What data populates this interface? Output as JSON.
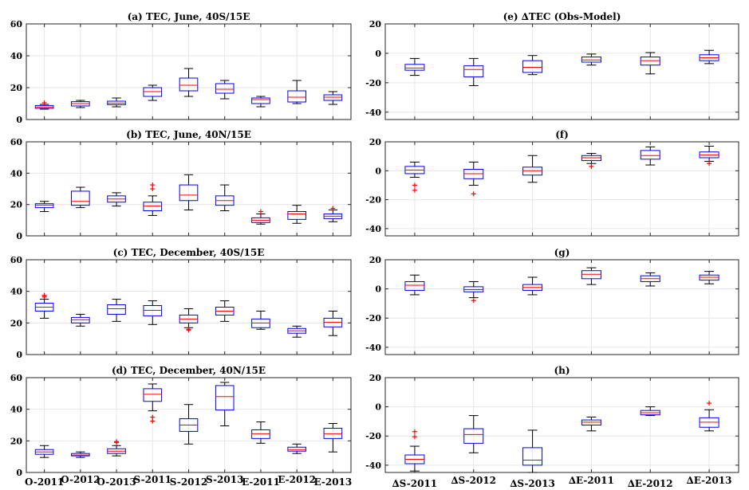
{
  "colors": {
    "box": "#0000ff",
    "median": "#ff0000",
    "whisker": "#000000",
    "outlier": "#ff0000"
  },
  "chart_data": [
    {
      "id": "a",
      "type": "box",
      "title": "(a) TEC, June, 40S/15E",
      "ylim": [
        0,
        60
      ],
      "yticks": [
        0,
        20,
        40,
        60
      ],
      "grid": true,
      "categories": [
        "O-2011",
        "O-2012",
        "O-2013",
        "S-2011",
        "S-2012",
        "S-2013",
        "E-2011",
        "E-2012",
        "E-2013"
      ],
      "boxes": [
        {
          "lw": 6.5,
          "q1": 7,
          "med": 7.8,
          "q3": 8.8,
          "uw": 9.5,
          "out": [
            10.5
          ]
        },
        {
          "lw": 7.5,
          "q1": 8.5,
          "med": 10,
          "q3": 11.2,
          "uw": 12,
          "out": []
        },
        {
          "lw": 8,
          "q1": 9.3,
          "med": 10.3,
          "q3": 11.5,
          "uw": 13.5,
          "out": []
        },
        {
          "lw": 12,
          "q1": 14.5,
          "med": 17.5,
          "q3": 20,
          "uw": 21.5,
          "out": []
        },
        {
          "lw": 14.5,
          "q1": 18,
          "med": 21.5,
          "q3": 26,
          "uw": 32,
          "out": []
        },
        {
          "lw": 13,
          "q1": 16.5,
          "med": 19,
          "q3": 22.5,
          "uw": 24.5,
          "out": []
        },
        {
          "lw": 8,
          "q1": 10,
          "med": 12.5,
          "q3": 13.5,
          "uw": 14.5,
          "out": []
        },
        {
          "lw": 10,
          "q1": 11,
          "med": 14,
          "q3": 18,
          "uw": 24.5,
          "out": []
        },
        {
          "lw": 9.5,
          "q1": 12,
          "med": 14,
          "q3": 15.5,
          "uw": 17.5,
          "out": []
        }
      ]
    },
    {
      "id": "b",
      "type": "box",
      "title": "(b) TEC, June, 40N/15E",
      "ylim": [
        0,
        60
      ],
      "yticks": [
        0,
        20,
        40,
        60
      ],
      "grid": true,
      "categories": [
        "O-2011",
        "O-2012",
        "O-2013",
        "S-2011",
        "S-2012",
        "S-2013",
        "E-2011",
        "E-2012",
        "E-2013"
      ],
      "boxes": [
        {
          "lw": 15.5,
          "q1": 18,
          "med": 19.5,
          "q3": 20.5,
          "uw": 22,
          "out": []
        },
        {
          "lw": 18,
          "q1": 19.5,
          "med": 22,
          "q3": 28.5,
          "uw": 31,
          "out": []
        },
        {
          "lw": 19,
          "q1": 21.5,
          "med": 23.5,
          "q3": 25.5,
          "uw": 27.5,
          "out": []
        },
        {
          "lw": 13,
          "q1": 16,
          "med": 19,
          "q3": 21.5,
          "uw": 25.5,
          "out": [
            30,
            32.5
          ]
        },
        {
          "lw": 16.5,
          "q1": 22.5,
          "med": 26,
          "q3": 32.5,
          "uw": 39,
          "out": []
        },
        {
          "lw": 16,
          "q1": 19.5,
          "med": 22.5,
          "q3": 25.5,
          "uw": 32.5,
          "out": []
        },
        {
          "lw": 7.5,
          "q1": 8.5,
          "med": 10,
          "q3": 11.5,
          "uw": 14,
          "out": [
            15.5
          ]
        },
        {
          "lw": 8,
          "q1": 10.5,
          "med": 14,
          "q3": 15.5,
          "uw": 19.5,
          "out": []
        },
        {
          "lw": 9,
          "q1": 11,
          "med": 12.5,
          "q3": 14,
          "uw": 16.5,
          "out": [
            17.5
          ]
        }
      ]
    },
    {
      "id": "c",
      "type": "box",
      "title": "(c) TEC, December, 40S/15E",
      "ylim": [
        0,
        60
      ],
      "yticks": [
        0,
        20,
        40,
        60
      ],
      "grid": true,
      "categories": [
        "O-2011",
        "O-2012",
        "O-2013",
        "S-2011",
        "S-2012",
        "S-2013",
        "E-2011",
        "E-2012",
        "E-2013"
      ],
      "boxes": [
        {
          "lw": 23,
          "q1": 27.5,
          "med": 30,
          "q3": 32.5,
          "uw": 35,
          "out": [
            36.5,
            37.5
          ]
        },
        {
          "lw": 18,
          "q1": 20,
          "med": 22,
          "q3": 23.5,
          "uw": 25.5,
          "out": []
        },
        {
          "lw": 21,
          "q1": 25.5,
          "med": 29,
          "q3": 31.5,
          "uw": 35,
          "out": []
        },
        {
          "lw": 19,
          "q1": 24.5,
          "med": 28,
          "q3": 31,
          "uw": 34,
          "out": []
        },
        {
          "lw": 17,
          "q1": 20,
          "med": 22.5,
          "q3": 25,
          "uw": 29,
          "out": [
            16,
            15.5
          ]
        },
        {
          "lw": 21,
          "q1": 25,
          "med": 27.5,
          "q3": 30,
          "uw": 34,
          "out": []
        },
        {
          "lw": 16,
          "q1": 17,
          "med": 20,
          "q3": 22.5,
          "uw": 27.5,
          "out": []
        },
        {
          "lw": 11,
          "q1": 13.5,
          "med": 15,
          "q3": 16.5,
          "uw": 18,
          "out": []
        },
        {
          "lw": 12,
          "q1": 17.5,
          "med": 20.5,
          "q3": 23,
          "uw": 27.5,
          "out": []
        }
      ]
    },
    {
      "id": "d",
      "type": "box",
      "title": "(d) TEC, December, 40N/15E",
      "ylim": [
        0,
        60
      ],
      "yticks": [
        0,
        20,
        40,
        60
      ],
      "grid": true,
      "categories": [
        "O-2011",
        "O-2012",
        "O-2013",
        "S-2011",
        "S-2012",
        "S-2013",
        "E-2011",
        "E-2012",
        "E-2013"
      ],
      "xticklabels": [
        "O-2011",
        "O-2012",
        "O-2013",
        "S-2011",
        "S-2012",
        "S-2013",
        "E-2011",
        "E-2012",
        "E-2013"
      ],
      "boxes": [
        {
          "lw": 9.5,
          "q1": 11.5,
          "med": 13,
          "q3": 14.5,
          "uw": 17,
          "out": []
        },
        {
          "lw": 9.5,
          "q1": 10.5,
          "med": 11,
          "q3": 12,
          "uw": 13,
          "out": []
        },
        {
          "lw": 10.5,
          "q1": 12,
          "med": 13.5,
          "q3": 15,
          "uw": 17,
          "out": [
            19,
            19.5
          ]
        },
        {
          "lw": 39,
          "q1": 45,
          "med": 49.5,
          "q3": 53,
          "uw": 56,
          "out": [
            35,
            32.5
          ]
        },
        {
          "lw": 18,
          "q1": 26,
          "med": 30,
          "q3": 34,
          "uw": 43,
          "out": []
        },
        {
          "lw": 29.5,
          "q1": 39.5,
          "med": 48,
          "q3": 55,
          "uw": 57,
          "out": []
        },
        {
          "lw": 18.5,
          "q1": 21.5,
          "med": 24.5,
          "q3": 27,
          "uw": 32,
          "out": []
        },
        {
          "lw": 12,
          "q1": 13.5,
          "med": 14.5,
          "q3": 16,
          "uw": 18,
          "out": []
        },
        {
          "lw": 13,
          "q1": 21.5,
          "med": 24.5,
          "q3": 28,
          "uw": 31,
          "out": []
        }
      ]
    },
    {
      "id": "e",
      "type": "box",
      "title": "(e)  ∆TEC (Obs-Model)",
      "ylim": [
        -45,
        20
      ],
      "yticks": [
        -40,
        -20,
        0,
        20
      ],
      "grid": true,
      "categories": [
        "∆S-2011",
        "∆S-2012",
        "∆S-2013",
        "∆E-2011",
        "∆E-2012",
        "∆E-2013"
      ],
      "boxes": [
        {
          "lw": -15,
          "q1": -11.5,
          "med": -10,
          "q3": -7.5,
          "uw": -3.5,
          "out": []
        },
        {
          "lw": -22,
          "q1": -16,
          "med": -11,
          "q3": -8.5,
          "uw": -3.5,
          "out": []
        },
        {
          "lw": -14.5,
          "q1": -13,
          "med": -9.5,
          "q3": -5,
          "uw": -1.5,
          "out": []
        },
        {
          "lw": -8,
          "q1": -6,
          "med": -4.5,
          "q3": -2.5,
          "uw": -0.5,
          "out": []
        },
        {
          "lw": -14,
          "q1": -8,
          "med": -5,
          "q3": -2.5,
          "uw": 0.5,
          "out": []
        },
        {
          "lw": -7,
          "q1": -5,
          "med": -3,
          "q3": -1,
          "uw": 2,
          "out": []
        }
      ]
    },
    {
      "id": "f",
      "type": "box",
      "title": "(f)",
      "ylim": [
        -45,
        20
      ],
      "yticks": [
        -40,
        -20,
        0,
        20
      ],
      "grid": true,
      "categories": [
        "∆S-2011",
        "∆S-2012",
        "∆S-2013",
        "∆E-2011",
        "∆E-2012",
        "∆E-2013"
      ],
      "boxes": [
        {
          "lw": -4.5,
          "q1": -2,
          "med": 0.5,
          "q3": 3,
          "uw": 6,
          "out": [
            -10,
            -13.5
          ]
        },
        {
          "lw": -10,
          "q1": -5.5,
          "med": -2,
          "q3": 1,
          "uw": 6,
          "out": [
            -16
          ]
        },
        {
          "lw": -8,
          "q1": -3,
          "med": 0,
          "q3": 2.5,
          "uw": 10.5,
          "out": []
        },
        {
          "lw": 5,
          "q1": 7,
          "med": 9,
          "q3": 10.5,
          "uw": 12,
          "out": [
            3
          ]
        },
        {
          "lw": 4,
          "q1": 8,
          "med": 10.5,
          "q3": 14,
          "uw": 16.5,
          "out": []
        },
        {
          "lw": 6.5,
          "q1": 9,
          "med": 11,
          "q3": 13,
          "uw": 17,
          "out": [
            5
          ]
        }
      ]
    },
    {
      "id": "g",
      "type": "box",
      "title": "(g)",
      "ylim": [
        -45,
        20
      ],
      "yticks": [
        -40,
        -20,
        0,
        20
      ],
      "grid": true,
      "categories": [
        "∆S-2011",
        "∆S-2012",
        "∆S-2013",
        "∆E-2011",
        "∆E-2012",
        "∆E-2013"
      ],
      "boxes": [
        {
          "lw": -4,
          "q1": -1,
          "med": 2.5,
          "q3": 5,
          "uw": 9.5,
          "out": []
        },
        {
          "lw": -6,
          "q1": -2,
          "med": -0.5,
          "q3": 1.5,
          "uw": 5,
          "out": [
            -8
          ]
        },
        {
          "lw": -4,
          "q1": -1,
          "med": 1,
          "q3": 3,
          "uw": 8,
          "out": []
        },
        {
          "lw": 3,
          "q1": 7,
          "med": 10,
          "q3": 12.5,
          "uw": 14.5,
          "out": []
        },
        {
          "lw": 2,
          "q1": 5,
          "med": 7,
          "q3": 9,
          "uw": 11,
          "out": []
        },
        {
          "lw": 3.5,
          "q1": 6,
          "med": 8,
          "q3": 9.5,
          "uw": 12,
          "out": []
        }
      ]
    },
    {
      "id": "h",
      "type": "box",
      "title": "(h)",
      "ylim": [
        -45,
        20
      ],
      "yticks": [
        -40,
        -20,
        0,
        20
      ],
      "grid": true,
      "categories": [
        "∆S-2011",
        "∆S-2012",
        "∆S-2013",
        "∆E-2011",
        "∆E-2012",
        "∆E-2013"
      ],
      "xticklabels": [
        "∆S-2011",
        "∆S-2012",
        "∆S-2013",
        "∆E-2011",
        "∆E-2012",
        "∆E-2013"
      ],
      "boxes": [
        {
          "lw": -44,
          "q1": -39,
          "med": -36,
          "q3": -33,
          "uw": -27,
          "out": [
            -17,
            -20.5
          ]
        },
        {
          "lw": -31.5,
          "q1": -25,
          "med": -19,
          "q3": -15,
          "uw": -6,
          "out": []
        },
        {
          "lw": -45,
          "q1": -40,
          "med": -36.5,
          "q3": -28,
          "uw": -16,
          "out": []
        },
        {
          "lw": -16.5,
          "q1": -12.5,
          "med": -10.5,
          "q3": -9,
          "uw": -7,
          "out": []
        },
        {
          "lw": -6,
          "q1": -5.5,
          "med": -4,
          "q3": -2.5,
          "uw": 0,
          "out": []
        },
        {
          "lw": -16.5,
          "q1": -14,
          "med": -10.5,
          "q3": -7.5,
          "uw": -2,
          "out": [
            2.5
          ]
        }
      ]
    }
  ]
}
